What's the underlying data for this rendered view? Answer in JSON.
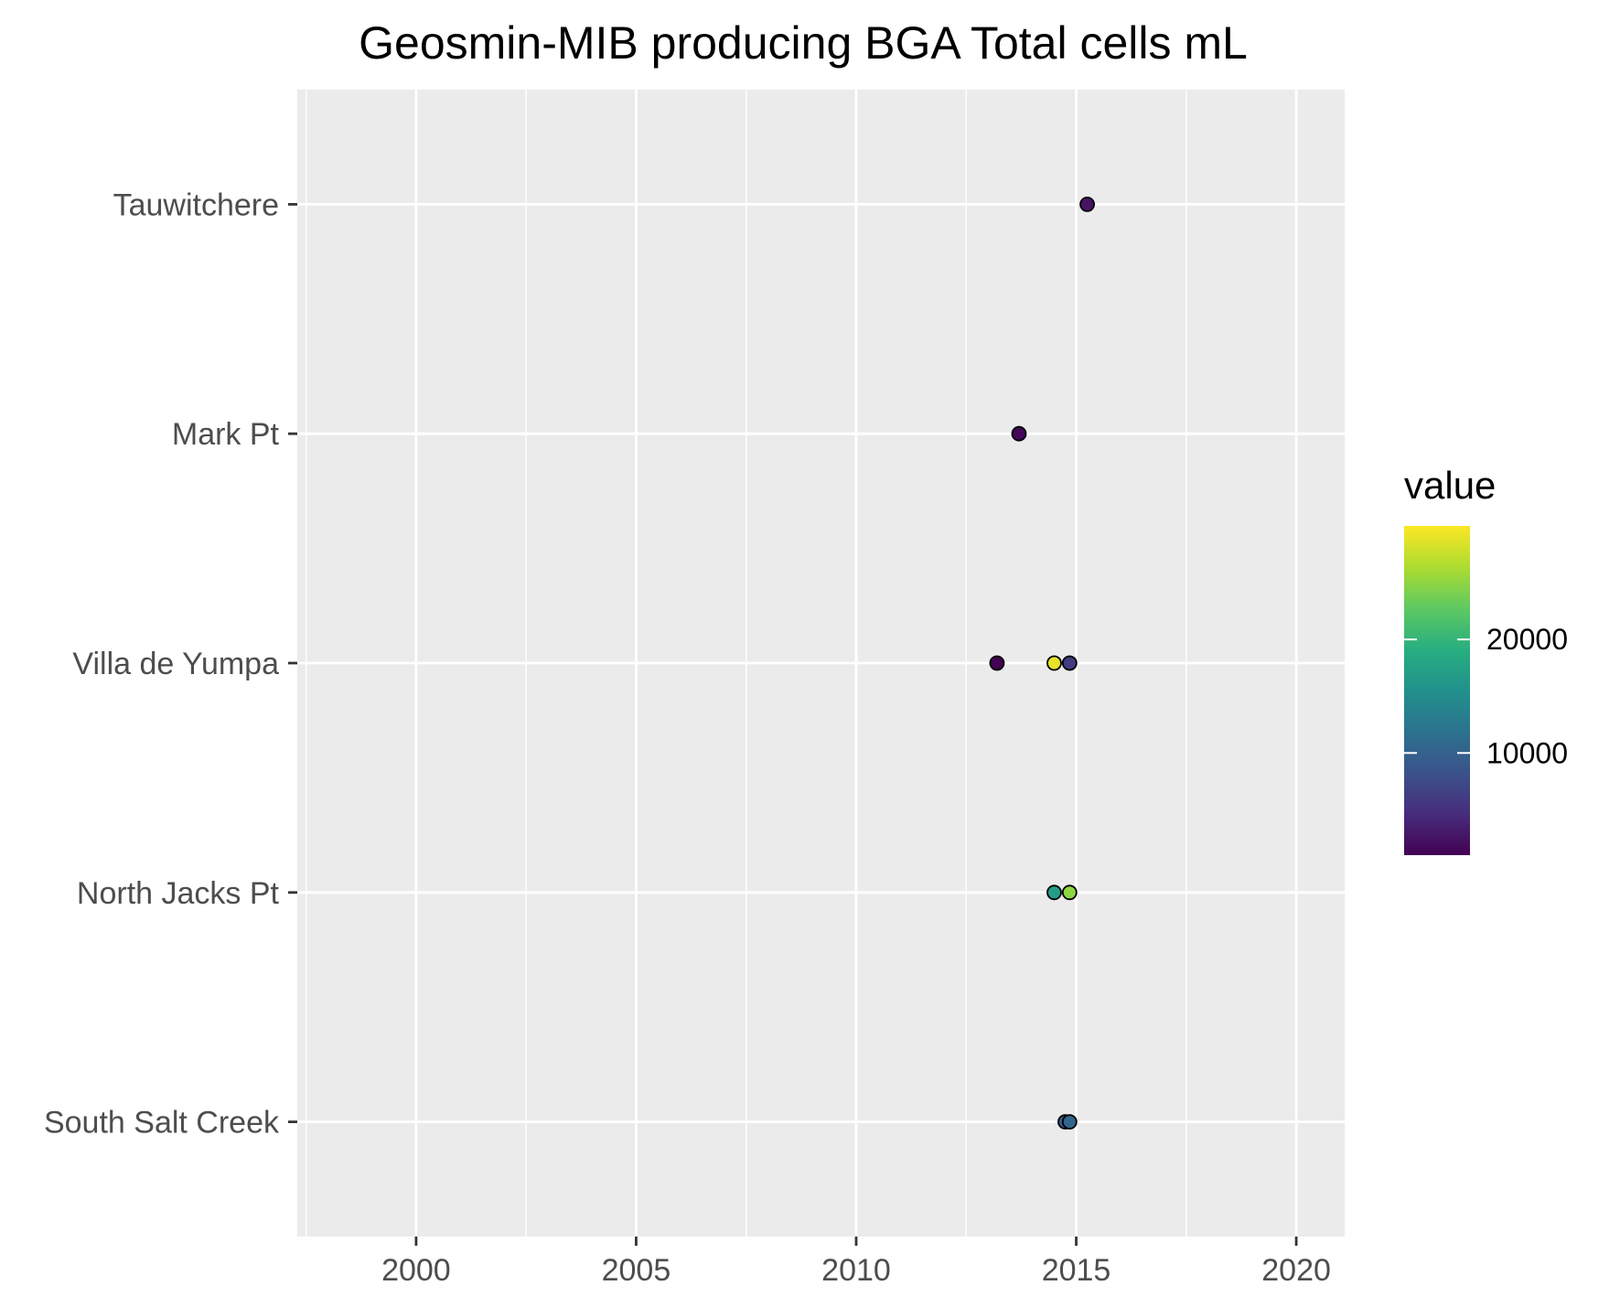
{
  "chart_data": {
    "type": "scatter",
    "title": "Geosmin-MIB producing BGA Total cells mL",
    "xlabel": "",
    "ylabel": "",
    "xlim": [
      1997.3,
      2021.1
    ],
    "x_ticks": [
      2000,
      2005,
      2010,
      2015,
      2020
    ],
    "x_tick_labels": [
      "2000",
      "2005",
      "2010",
      "2015",
      "2020"
    ],
    "categories": [
      "South Salt Creek",
      "North Jacks Pt",
      "Villa de Yumpa",
      "Mark Pt",
      "Tauwitchere"
    ],
    "points": [
      {
        "site": "Tauwitchere",
        "x": 2015.25,
        "value": 2500
      },
      {
        "site": "Mark Pt",
        "x": 2013.7,
        "value": 1500
      },
      {
        "site": "Villa de Yumpa",
        "x": 2013.2,
        "value": 1000
      },
      {
        "site": "Villa de Yumpa",
        "x": 2014.5,
        "value": 29000
      },
      {
        "site": "Villa de Yumpa",
        "x": 2014.85,
        "value": 6000
      },
      {
        "site": "North Jacks Pt",
        "x": 2014.5,
        "value": 17000
      },
      {
        "site": "North Jacks Pt",
        "x": 2014.85,
        "value": 25000
      },
      {
        "site": "South Salt Creek",
        "x": 2014.75,
        "value": 9000
      },
      {
        "site": "South Salt Creek",
        "x": 2014.85,
        "value": 10500
      }
    ],
    "color_scale": {
      "title": "value",
      "palette": "viridis",
      "range": [
        1000,
        30000
      ],
      "ticks": [
        10000,
        20000
      ],
      "tick_labels": [
        "10000",
        "20000"
      ]
    },
    "grid": true,
    "legend_position": "right",
    "panel_background": "#ebebeb",
    "gridline_color": "#ffffff"
  }
}
